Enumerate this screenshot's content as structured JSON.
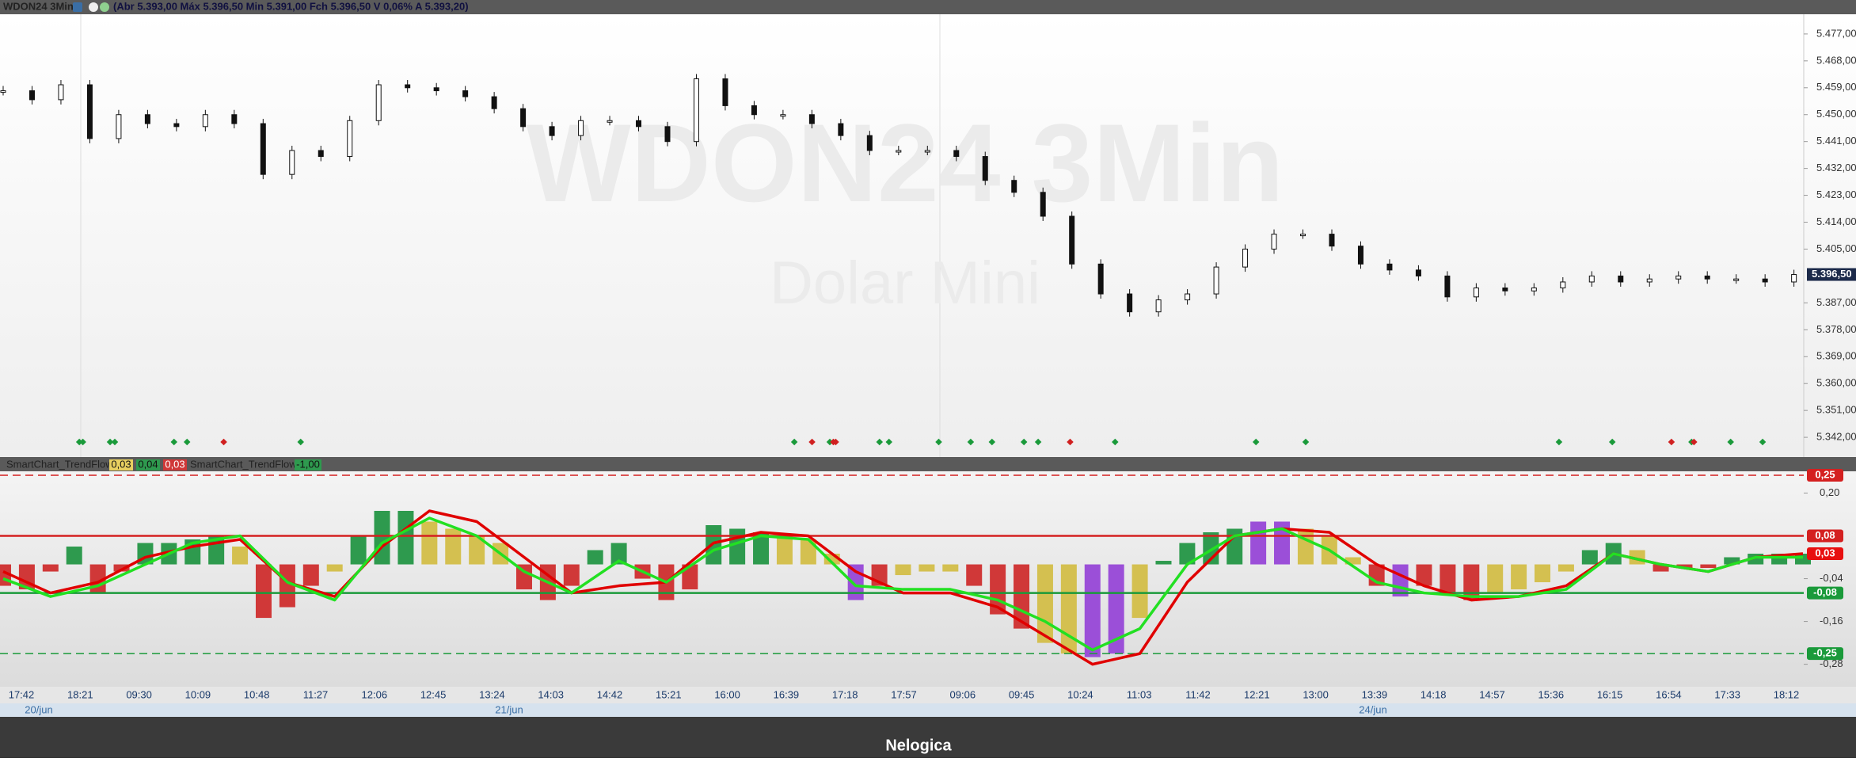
{
  "header": {
    "symbol": "WDON24 3Min",
    "quote": "(Abr 5.393,00 Máx 5.396,50 Min 5.391,00 Fch 5.396,50 V 0,06% A 5.393,20)"
  },
  "watermark": {
    "title": "WDON24 3Min",
    "subtitle": "Dolar Mini"
  },
  "price_chart": {
    "type": "candlestick",
    "ylim": [
      5335.4,
      5483.6
    ],
    "yticks": [
      {
        "value": 5477,
        "label": "5.477,00"
      },
      {
        "value": 5468,
        "label": "5.468,00"
      },
      {
        "value": 5459,
        "label": "5.459,00"
      },
      {
        "value": 5450,
        "label": "5.450,00"
      },
      {
        "value": 5441,
        "label": "5.441,00"
      },
      {
        "value": 5432,
        "label": "5.432,00"
      },
      {
        "value": 5423,
        "label": "5.423,00"
      },
      {
        "value": 5414,
        "label": "5.414,00"
      },
      {
        "value": 5405,
        "label": "5.405,00"
      },
      {
        "value": 5387,
        "label": "5.387,00"
      },
      {
        "value": 5378,
        "label": "5.378,00"
      },
      {
        "value": 5369,
        "label": "5.369,00"
      },
      {
        "value": 5360,
        "label": "5.360,00"
      },
      {
        "value": 5351,
        "label": "5.351,00"
      },
      {
        "value": 5342,
        "label": "5.342,00"
      }
    ],
    "last_price": {
      "value": 5396.5,
      "label": "5.396,50"
    },
    "closes": [
      5458,
      5455,
      5460,
      5442,
      5450,
      5447,
      5446,
      5450,
      5447,
      5430,
      5438,
      5436,
      5448,
      5460,
      5459,
      5458,
      5456,
      5452,
      5446,
      5443,
      5448,
      5448,
      5446,
      5441,
      5462,
      5453,
      5450,
      5450,
      5447,
      5443,
      5438,
      5438,
      5438,
      5436,
      5428,
      5424,
      5416,
      5400,
      5390,
      5384,
      5388,
      5390,
      5399,
      5405,
      5410,
      5410,
      5406,
      5400,
      5398,
      5396,
      5389,
      5392,
      5391,
      5392,
      5394,
      5396,
      5394,
      5395,
      5396,
      5395,
      5395,
      5394,
      5396.5
    ]
  },
  "indicator": {
    "header": {
      "name": "SmartChart_TrendFlow",
      "v1": "0,03",
      "v2": "0,04",
      "v3": "0,03",
      "name2": "SmartChart_TrendFlow",
      "v4": "-1,00"
    },
    "type": "histogram",
    "ylim": [
      -0.343,
      0.261
    ],
    "yticks": [
      {
        "value": 0.2,
        "label": "0,20"
      },
      {
        "value": -0.04,
        "label": "-0,04"
      },
      {
        "value": -0.16,
        "label": "-0,16"
      },
      {
        "value": -0.28,
        "label": "-0,28"
      }
    ],
    "levels": [
      {
        "value": 0.25,
        "label": "0,25",
        "color": "#d42020",
        "dashed": true
      },
      {
        "value": 0.08,
        "label": "0,08",
        "color": "#d42020",
        "dashed": false
      },
      {
        "value": 0.03,
        "label": "0,03",
        "color": "#e81010",
        "dashed": null
      },
      {
        "value": -0.08,
        "label": "-0,08",
        "color": "#1a9a3a",
        "dashed": false
      },
      {
        "value": -0.25,
        "label": "-0,25",
        "color": "#1a9a3a",
        "dashed": true
      }
    ],
    "palette": {
      "g": "#2e9a4e",
      "r": "#d03838",
      "y": "#d4c050",
      "p": "#9b4fd8"
    },
    "values": [
      -0.06,
      -0.07,
      -0.02,
      0.05,
      -0.08,
      -0.02,
      0.06,
      0.06,
      0.07,
      0.08,
      0.05,
      -0.15,
      -0.12,
      -0.06,
      -0.02,
      0.08,
      0.15,
      0.15,
      0.12,
      0.1,
      0.08,
      0.06,
      -0.07,
      -0.1,
      -0.06,
      0.04,
      0.06,
      -0.04,
      -0.1,
      -0.07,
      0.11,
      0.1,
      0.09,
      0.08,
      0.07,
      0.03,
      -0.1,
      -0.06,
      -0.03,
      -0.02,
      -0.02,
      -0.06,
      -0.14,
      -0.18,
      -0.22,
      -0.25,
      -0.26,
      -0.25,
      -0.15,
      0.01,
      0.06,
      0.09,
      0.1,
      0.12,
      0.12,
      0.1,
      0.08,
      0.02,
      -0.06,
      -0.09,
      -0.06,
      -0.08,
      -0.1,
      -0.08,
      -0.07,
      -0.05,
      -0.02,
      0.04,
      0.06,
      0.04,
      -0.02,
      -0.01,
      -0.01,
      0.02,
      0.03,
      0.03,
      0.03
    ],
    "kinds": [
      "r",
      "r",
      "r",
      "g",
      "r",
      "r",
      "g",
      "g",
      "g",
      "g",
      "y",
      "r",
      "r",
      "r",
      "y",
      "g",
      "g",
      "g",
      "y",
      "y",
      "y",
      "y",
      "r",
      "r",
      "r",
      "g",
      "g",
      "r",
      "r",
      "r",
      "g",
      "g",
      "g",
      "y",
      "y",
      "y",
      "p",
      "r",
      "y",
      "y",
      "y",
      "r",
      "r",
      "r",
      "y",
      "y",
      "p",
      "p",
      "y",
      "g",
      "g",
      "g",
      "g",
      "p",
      "p",
      "y",
      "y",
      "y",
      "r",
      "p",
      "r",
      "r",
      "r",
      "y",
      "y",
      "y",
      "y",
      "g",
      "g",
      "y",
      "r",
      "r",
      "r",
      "g",
      "g",
      "g",
      "g"
    ],
    "series": [
      {
        "name": null,
        "color": "#e00000",
        "values": [
          -0.02,
          -0.08,
          -0.05,
          0.02,
          0.05,
          0.07,
          -0.05,
          -0.09,
          0.05,
          0.15,
          0.12,
          0.02,
          -0.08,
          -0.06,
          -0.05,
          0.06,
          0.09,
          0.08,
          -0.02,
          -0.08,
          -0.08,
          -0.12,
          -0.2,
          -0.28,
          -0.25,
          -0.05,
          0.08,
          0.1,
          0.09,
          0.0,
          -0.06,
          -0.1,
          -0.09,
          -0.06,
          0.03,
          0.0,
          -0.02,
          0.02,
          0.03
        ]
      },
      {
        "name": null,
        "color": "#22e022",
        "values": [
          -0.04,
          -0.09,
          -0.06,
          0.0,
          0.06,
          0.08,
          -0.05,
          -0.1,
          0.06,
          0.13,
          0.08,
          -0.02,
          -0.08,
          0.01,
          -0.05,
          0.04,
          0.08,
          0.07,
          -0.06,
          -0.07,
          -0.07,
          -0.1,
          -0.16,
          -0.24,
          -0.18,
          0.0,
          0.08,
          0.1,
          0.04,
          -0.05,
          -0.08,
          -0.09,
          -0.09,
          -0.07,
          0.03,
          0.0,
          -0.02,
          0.02,
          0.02
        ]
      }
    ]
  },
  "time_axis": {
    "labels": [
      "17:42",
      "18:21",
      "09:30",
      "10:09",
      "10:48",
      "11:27",
      "12:06",
      "12:45",
      "13:24",
      "14:03",
      "14:42",
      "15:21",
      "16:00",
      "16:39",
      "17:18",
      "17:57",
      "09:06",
      "09:45",
      "10:24",
      "11:03",
      "11:42",
      "12:21",
      "13:00",
      "13:39",
      "14:18",
      "14:57",
      "15:36",
      "16:15",
      "16:54",
      "17:33",
      "18:12"
    ],
    "dates": [
      "20/jun",
      "21/jun",
      "24/jun"
    ]
  },
  "footer": {
    "brand": "Nelogica"
  }
}
